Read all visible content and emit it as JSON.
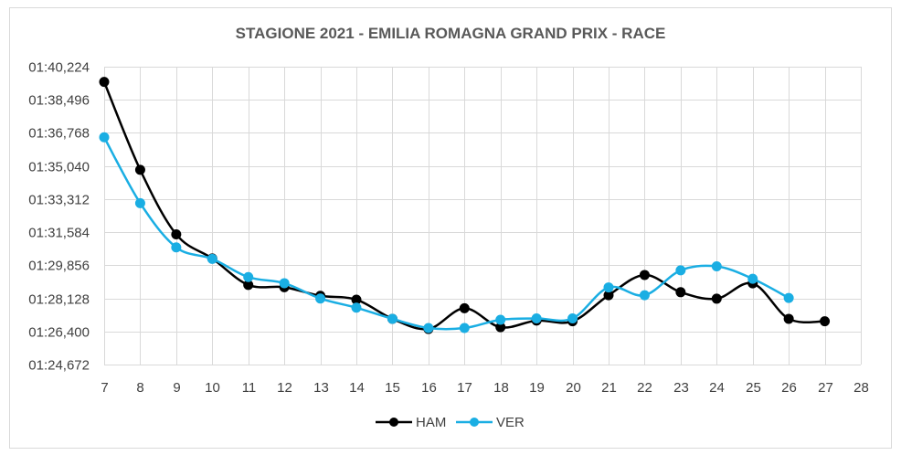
{
  "chart_data": {
    "type": "line",
    "title": "STAGIONE 2021 - EMILIA ROMAGNA GRAND PRIX - RACE",
    "xlabel": "",
    "ylabel": "",
    "x_ticks": [
      "7",
      "8",
      "9",
      "10",
      "11",
      "12",
      "13",
      "14",
      "15",
      "16",
      "17",
      "18",
      "19",
      "20",
      "21",
      "22",
      "23",
      "24",
      "25",
      "26",
      "27",
      "28"
    ],
    "xlim": [
      7,
      28
    ],
    "y_ticks": [
      "01:40,224",
      "01:38,496",
      "01:36,768",
      "01:35,040",
      "01:33,312",
      "01:31,584",
      "01:29,856",
      "01:28,128",
      "01:26,400",
      "01:24,672"
    ],
    "y_tick_values": [
      100.224,
      98.496,
      96.768,
      95.04,
      93.312,
      91.584,
      89.856,
      88.128,
      86.4,
      84.672
    ],
    "ylim": [
      84.672,
      100.224
    ],
    "grid": true,
    "legend_position": "bottom",
    "smooth": true,
    "series": [
      {
        "name": "HAM",
        "color": "#000000",
        "x": [
          7,
          8,
          9,
          10,
          11,
          12,
          13,
          14,
          15,
          16,
          17,
          18,
          19,
          20,
          21,
          22,
          23,
          24,
          25,
          26,
          27
        ],
        "y": [
          99.43,
          94.84,
          91.47,
          90.21,
          88.83,
          88.71,
          88.26,
          88.06,
          87.06,
          86.53,
          87.61,
          86.62,
          86.97,
          86.93,
          88.29,
          89.35,
          88.45,
          88.11,
          88.91,
          87.06,
          86.93
        ]
      },
      {
        "name": "VER",
        "color": "#1AAEE3",
        "x": [
          7,
          8,
          9,
          10,
          11,
          12,
          13,
          14,
          15,
          16,
          17,
          18,
          19,
          20,
          21,
          22,
          23,
          24,
          25,
          26
        ],
        "y": [
          96.54,
          93.1,
          90.79,
          90.19,
          89.24,
          88.92,
          88.12,
          87.64,
          87.06,
          86.58,
          86.58,
          87.01,
          87.08,
          87.08,
          88.7,
          88.29,
          89.59,
          89.8,
          89.15,
          88.15
        ]
      }
    ]
  }
}
